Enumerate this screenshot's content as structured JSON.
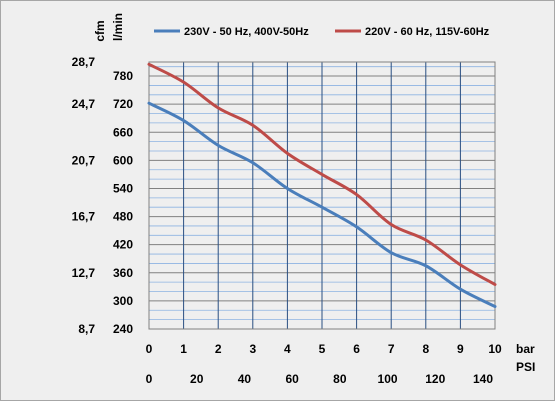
{
  "chart_data": {
    "type": "line",
    "title": "",
    "x_primary": {
      "unit": "bar",
      "range": [
        0,
        10
      ],
      "ticks": [
        "0",
        "1",
        "2",
        "3",
        "4",
        "5",
        "6",
        "7",
        "8",
        "9",
        "10"
      ]
    },
    "x_secondary": {
      "unit": "PSI",
      "ticks": [
        {
          "label": "0",
          "bar": 0
        },
        {
          "label": "20",
          "bar": 1.379
        },
        {
          "label": "40",
          "bar": 2.758
        },
        {
          "label": "60",
          "bar": 4.137
        },
        {
          "label": "80",
          "bar": 5.516
        },
        {
          "label": "100",
          "bar": 6.895
        },
        {
          "label": "120",
          "bar": 8.274
        },
        {
          "label": "140",
          "bar": 9.653
        }
      ]
    },
    "y_primary": {
      "unit": "l/min",
      "range": [
        240,
        810
      ],
      "ticks": [
        "240",
        "300",
        "360",
        "420",
        "480",
        "540",
        "600",
        "660",
        "720",
        "780"
      ]
    },
    "y_secondary": {
      "unit": "cfm",
      "ticks": [
        {
          "label": "8,7",
          "lmin": 240
        },
        {
          "label": "12,7",
          "lmin": 360
        },
        {
          "label": "16,7",
          "lmin": 480
        },
        {
          "label": "20,7",
          "lmin": 600
        },
        {
          "label": "24,7",
          "lmin": 720
        },
        {
          "label": "28,7",
          "lmin": 810
        }
      ]
    },
    "grid": true,
    "legend_position": "top",
    "series": [
      {
        "name": "230V - 50 Hz, 400V-50Hz",
        "color": "#4a7ebb",
        "x": [
          0,
          1,
          2,
          3,
          4,
          5,
          6,
          7,
          8,
          9,
          10
        ],
        "y": [
          722,
          685,
          632,
          595,
          540,
          500,
          458,
          403,
          375,
          325,
          288
        ]
      },
      {
        "name": "220V - 60 Hz, 115V-60Hz",
        "color": "#be4b48",
        "x": [
          0,
          1,
          2,
          3,
          4,
          5,
          6,
          7,
          8,
          9,
          10
        ],
        "y": [
          805,
          767,
          712,
          675,
          615,
          570,
          527,
          463,
          430,
          377,
          335
        ]
      }
    ]
  }
}
